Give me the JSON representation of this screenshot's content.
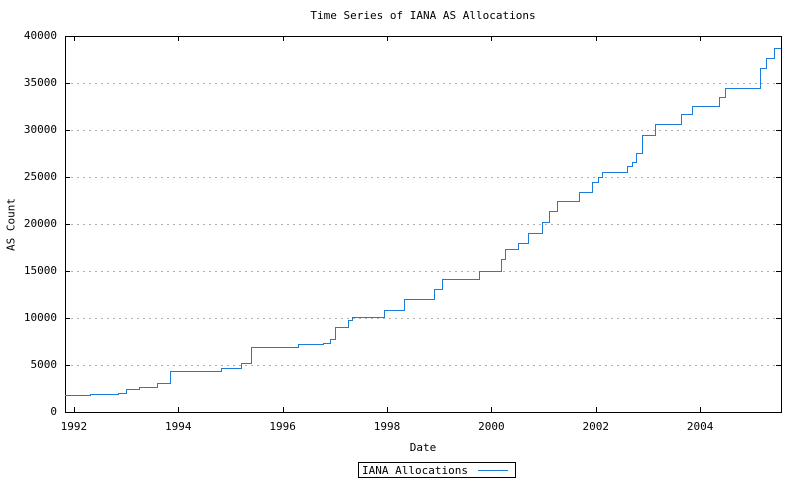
{
  "chart_data": {
    "type": "line",
    "subtype": "step-post",
    "title": "Time Series of IANA AS Allocations",
    "xlabel": "Date",
    "ylabel": "AS Count",
    "legend": [
      "IANA Allocations"
    ],
    "legend_position": "bottom-center-outside",
    "grid": "horizontal-dotted",
    "xlim": [
      1991.83,
      2005.55
    ],
    "ylim": [
      0,
      40000
    ],
    "x_ticks": [
      1992,
      1994,
      1996,
      1998,
      2000,
      2002,
      2004
    ],
    "y_ticks": [
      0,
      5000,
      10000,
      15000,
      20000,
      25000,
      30000,
      35000,
      40000
    ],
    "colors": {
      "line": "#1c7cd9",
      "grid": "#b0b0b0",
      "axis": "#000000",
      "background": "#ffffff"
    },
    "series": [
      {
        "name": "IANA Allocations",
        "points": [
          [
            1991.83,
            1770
          ],
          [
            1992.3,
            1900
          ],
          [
            1992.85,
            2000
          ],
          [
            1993.0,
            2430
          ],
          [
            1993.25,
            2650
          ],
          [
            1993.6,
            3050
          ],
          [
            1993.85,
            4350
          ],
          [
            1994.82,
            4700
          ],
          [
            1995.2,
            5250
          ],
          [
            1995.4,
            6900
          ],
          [
            1996.3,
            7230
          ],
          [
            1996.77,
            7370
          ],
          [
            1996.9,
            7750
          ],
          [
            1997.0,
            9000
          ],
          [
            1997.25,
            9800
          ],
          [
            1997.32,
            10100
          ],
          [
            1997.95,
            10900
          ],
          [
            1998.33,
            12000
          ],
          [
            1998.9,
            13050
          ],
          [
            1999.05,
            14150
          ],
          [
            1999.76,
            15030
          ],
          [
            2000.18,
            16240
          ],
          [
            2000.27,
            17300
          ],
          [
            2000.51,
            18010
          ],
          [
            2000.7,
            19070
          ],
          [
            2000.97,
            20250
          ],
          [
            2001.1,
            21380
          ],
          [
            2001.26,
            22450
          ],
          [
            2001.67,
            23440
          ],
          [
            2001.93,
            24500
          ],
          [
            2002.04,
            25030
          ],
          [
            2002.12,
            25560
          ],
          [
            2002.6,
            26170
          ],
          [
            2002.7,
            26630
          ],
          [
            2002.78,
            27520
          ],
          [
            2002.88,
            29470
          ],
          [
            2003.13,
            30640
          ],
          [
            2003.64,
            31700
          ],
          [
            2003.84,
            32550
          ],
          [
            2004.37,
            33540
          ],
          [
            2004.47,
            34500
          ],
          [
            2005.14,
            36630
          ],
          [
            2005.26,
            37630
          ],
          [
            2005.42,
            38690
          ]
        ],
        "end_x": 2005.55
      }
    ]
  }
}
